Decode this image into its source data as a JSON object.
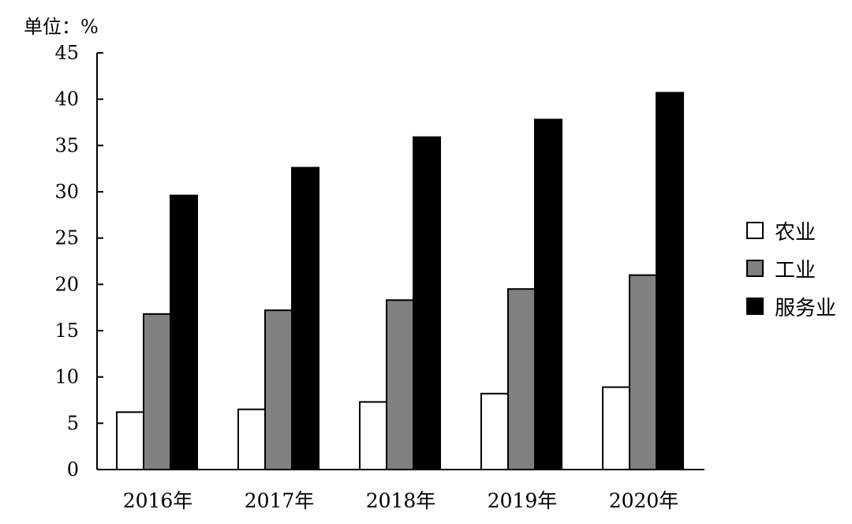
{
  "unit_label": "单位：%",
  "chart_data": {
    "type": "bar",
    "title": "",
    "xlabel": "",
    "ylabel": "",
    "categories": [
      "2016年",
      "2017年",
      "2018年",
      "2019年",
      "2020年"
    ],
    "series": [
      {
        "name": "农业",
        "values": [
          6.2,
          6.5,
          7.3,
          8.2,
          8.9
        ],
        "color": "#ffffff"
      },
      {
        "name": "工业",
        "values": [
          16.8,
          17.2,
          18.3,
          19.5,
          21.0
        ],
        "color": "#808080"
      },
      {
        "name": "服务业",
        "values": [
          29.6,
          32.6,
          35.9,
          37.8,
          40.7
        ],
        "color": "#000000"
      }
    ],
    "ylim": [
      0,
      45
    ],
    "yticks": [
      0,
      5,
      10,
      15,
      20,
      25,
      30,
      35,
      40,
      45
    ],
    "grid": false,
    "legend_position": "right"
  }
}
